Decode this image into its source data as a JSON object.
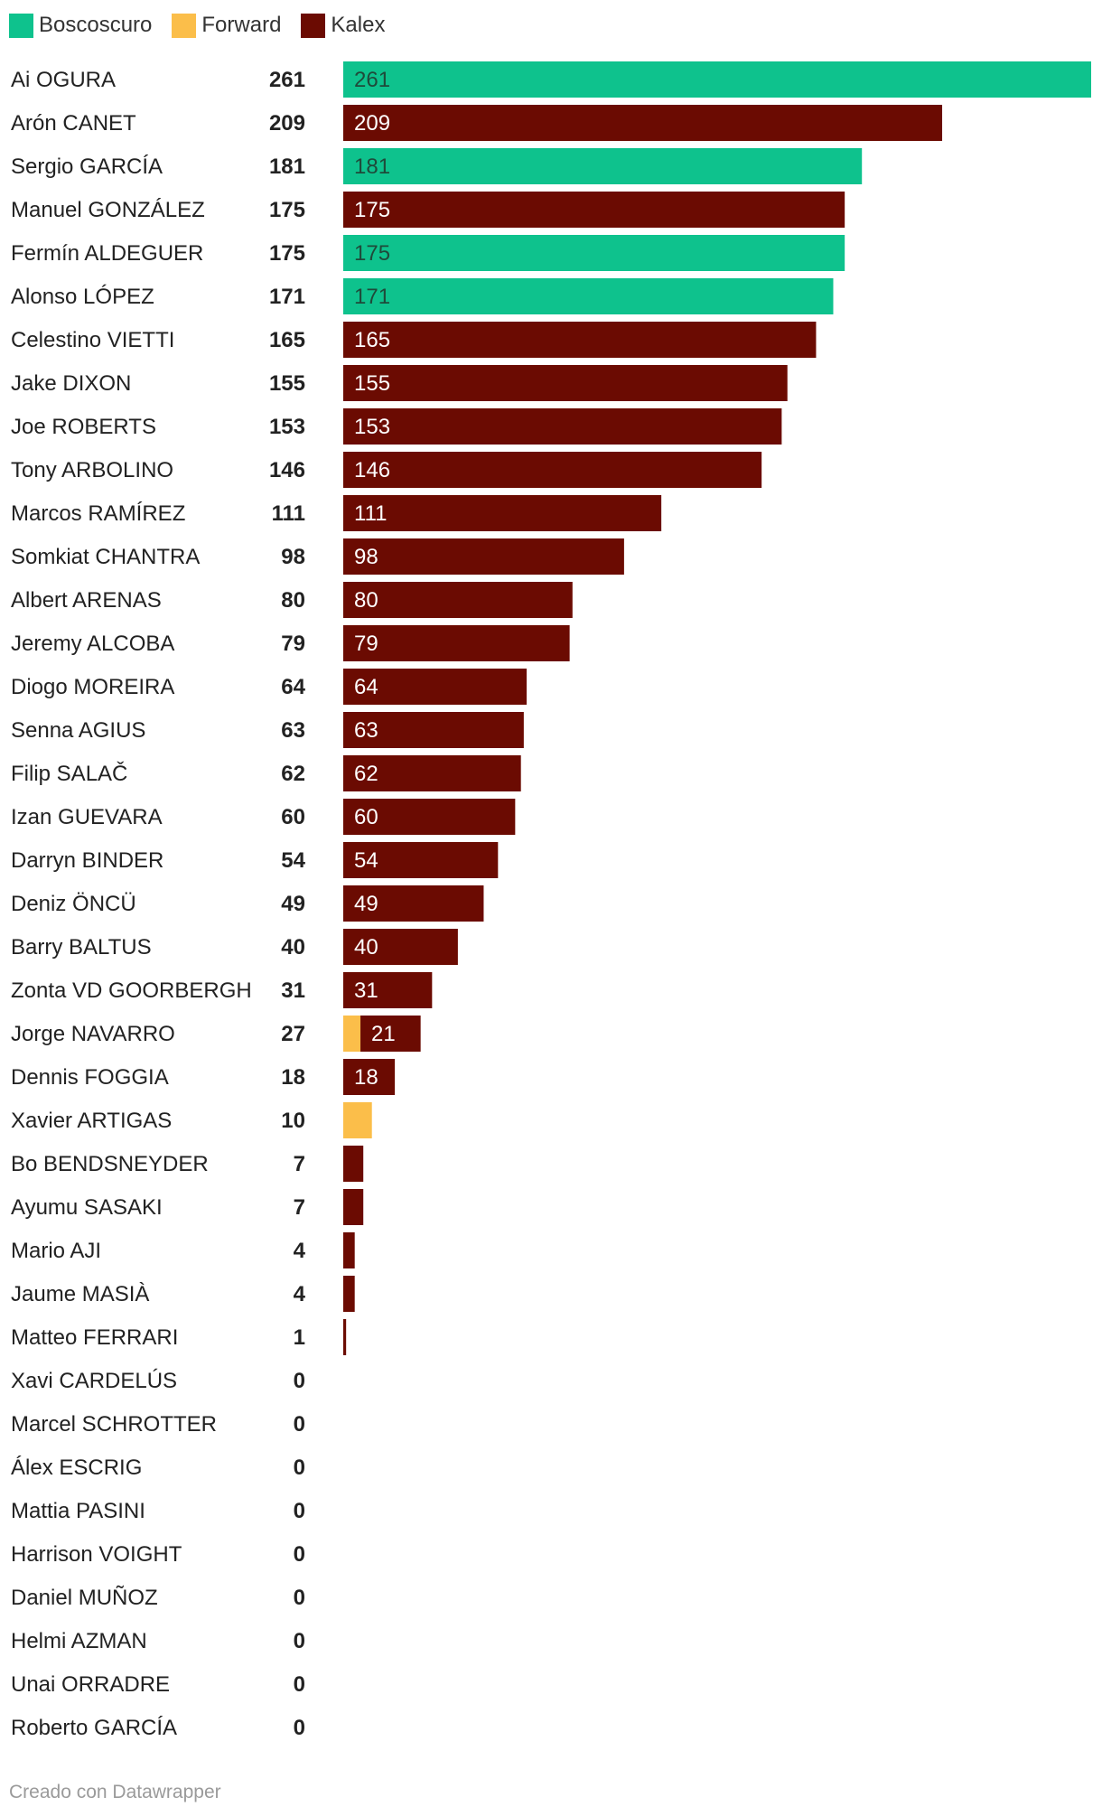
{
  "chart_data": {
    "type": "bar",
    "orientation": "horizontal",
    "stacked": true,
    "legend": [
      {
        "name": "Boscoscuro",
        "color": "#0ec28d"
      },
      {
        "name": "Forward",
        "color": "#fbbe4a"
      },
      {
        "name": "Kalex",
        "color": "#6b0b02"
      }
    ],
    "xlim": [
      0,
      261
    ],
    "rows": [
      {
        "rider": "Ai OGURA",
        "total": "261",
        "segments": [
          {
            "team": "Boscoscuro",
            "value": 261
          }
        ]
      },
      {
        "rider": "Arón CANET",
        "total": "209",
        "segments": [
          {
            "team": "Kalex",
            "value": 209
          }
        ]
      },
      {
        "rider": "Sergio GARCÍA",
        "total": "181",
        "segments": [
          {
            "team": "Boscoscuro",
            "value": 181
          }
        ]
      },
      {
        "rider": "Manuel GONZÁLEZ",
        "total": "175",
        "segments": [
          {
            "team": "Kalex",
            "value": 175
          }
        ]
      },
      {
        "rider": "Fermín ALDEGUER",
        "total": "175",
        "segments": [
          {
            "team": "Boscoscuro",
            "value": 175
          }
        ]
      },
      {
        "rider": "Alonso LÓPEZ",
        "total": "171",
        "segments": [
          {
            "team": "Boscoscuro",
            "value": 171
          }
        ]
      },
      {
        "rider": "Celestino VIETTI",
        "total": "165",
        "segments": [
          {
            "team": "Kalex",
            "value": 165
          }
        ]
      },
      {
        "rider": "Jake DIXON",
        "total": "155",
        "segments": [
          {
            "team": "Kalex",
            "value": 155
          }
        ]
      },
      {
        "rider": "Joe ROBERTS",
        "total": "153",
        "segments": [
          {
            "team": "Kalex",
            "value": 153
          }
        ]
      },
      {
        "rider": "Tony ARBOLINO",
        "total": "146",
        "segments": [
          {
            "team": "Kalex",
            "value": 146
          }
        ]
      },
      {
        "rider": "Marcos RAMÍREZ",
        "total": "111",
        "segments": [
          {
            "team": "Kalex",
            "value": 111
          }
        ]
      },
      {
        "rider": "Somkiat CHANTRA",
        "total": "98",
        "segments": [
          {
            "team": "Kalex",
            "value": 98
          }
        ]
      },
      {
        "rider": "Albert ARENAS",
        "total": "80",
        "segments": [
          {
            "team": "Kalex",
            "value": 80
          }
        ]
      },
      {
        "rider": "Jeremy ALCOBA",
        "total": "79",
        "segments": [
          {
            "team": "Kalex",
            "value": 79
          }
        ]
      },
      {
        "rider": "Diogo MOREIRA",
        "total": "64",
        "segments": [
          {
            "team": "Kalex",
            "value": 64
          }
        ]
      },
      {
        "rider": "Senna AGIUS",
        "total": "63",
        "segments": [
          {
            "team": "Kalex",
            "value": 63
          }
        ]
      },
      {
        "rider": "Filip SALAČ",
        "total": "62",
        "segments": [
          {
            "team": "Kalex",
            "value": 62
          }
        ]
      },
      {
        "rider": "Izan GUEVARA",
        "total": "60",
        "segments": [
          {
            "team": "Kalex",
            "value": 60
          }
        ]
      },
      {
        "rider": "Darryn BINDER",
        "total": "54",
        "segments": [
          {
            "team": "Kalex",
            "value": 54
          }
        ]
      },
      {
        "rider": "Deniz ÖNCÜ",
        "total": "49",
        "segments": [
          {
            "team": "Kalex",
            "value": 49
          }
        ]
      },
      {
        "rider": "Barry BALTUS",
        "total": "40",
        "segments": [
          {
            "team": "Kalex",
            "value": 40
          }
        ]
      },
      {
        "rider": "Zonta VD GOORBERGH",
        "total": "31",
        "segments": [
          {
            "team": "Kalex",
            "value": 31
          }
        ]
      },
      {
        "rider": "Jorge NAVARRO",
        "total": "27",
        "segments": [
          {
            "team": "Forward",
            "value": 6
          },
          {
            "team": "Kalex",
            "value": 21
          }
        ]
      },
      {
        "rider": "Dennis FOGGIA",
        "total": "18",
        "segments": [
          {
            "team": "Kalex",
            "value": 18
          }
        ]
      },
      {
        "rider": "Xavier ARTIGAS",
        "total": "10",
        "segments": [
          {
            "team": "Forward",
            "value": 10
          }
        ]
      },
      {
        "rider": "Bo BENDSNEYDER",
        "total": "7",
        "segments": [
          {
            "team": "Kalex",
            "value": 7
          }
        ]
      },
      {
        "rider": "Ayumu SASAKI",
        "total": "7",
        "segments": [
          {
            "team": "Kalex",
            "value": 7
          }
        ]
      },
      {
        "rider": "Mario AJI",
        "total": "4",
        "segments": [
          {
            "team": "Kalex",
            "value": 4
          }
        ]
      },
      {
        "rider": "Jaume MASIÀ",
        "total": "4",
        "segments": [
          {
            "team": "Kalex",
            "value": 4
          }
        ]
      },
      {
        "rider": "Matteo FERRARI",
        "total": "1",
        "segments": [
          {
            "team": "Kalex",
            "value": 1
          }
        ]
      },
      {
        "rider": "Xavi CARDELÚS",
        "total": "0",
        "segments": []
      },
      {
        "rider": "Marcel SCHROTTER",
        "total": "0",
        "segments": []
      },
      {
        "rider": "Álex ESCRIG",
        "total": "0",
        "segments": []
      },
      {
        "rider": "Mattia PASINI",
        "total": "0",
        "segments": []
      },
      {
        "rider": "Harrison VOIGHT",
        "total": "0",
        "segments": []
      },
      {
        "rider": "Daniel MUÑOZ",
        "total": "0",
        "segments": []
      },
      {
        "rider": "Helmi AZMAN",
        "total": "0",
        "segments": []
      },
      {
        "rider": "Unai ORRADRE",
        "total": "0",
        "segments": []
      },
      {
        "rider": "Roberto GARCÍA",
        "total": "0",
        "segments": []
      }
    ]
  },
  "footer": {
    "credit": "Creado con Datawrapper"
  }
}
